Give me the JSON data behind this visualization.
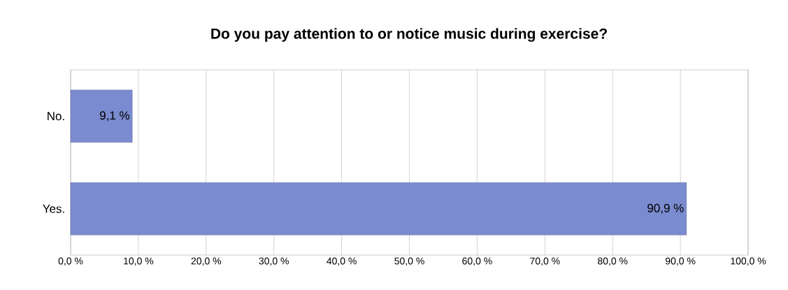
{
  "chart_data": {
    "type": "bar",
    "orientation": "horizontal",
    "title": "Do you pay attention to or notice music during exercise?",
    "categories": [
      "No.",
      "Yes."
    ],
    "values": [
      9.1,
      90.9
    ],
    "value_labels": [
      "9,1 %",
      "90,9 %"
    ],
    "color": "#7b8bcf",
    "xlim": [
      0,
      100
    ],
    "xticks": [
      {
        "value": 0,
        "label": "0,0 %"
      },
      {
        "value": 10,
        "label": "10,0 %"
      },
      {
        "value": 20,
        "label": "20,0 %"
      },
      {
        "value": 30,
        "label": "30,0 %"
      },
      {
        "value": 40,
        "label": "40,0 %"
      },
      {
        "value": 50,
        "label": "50,0 %"
      },
      {
        "value": 60,
        "label": "60,0 %"
      },
      {
        "value": 70,
        "label": "70,0 %"
      },
      {
        "value": 80,
        "label": "80,0 %"
      },
      {
        "value": 90,
        "label": "90,0 %"
      },
      {
        "value": 100,
        "label": "100,0 %"
      }
    ],
    "grid": "x"
  }
}
